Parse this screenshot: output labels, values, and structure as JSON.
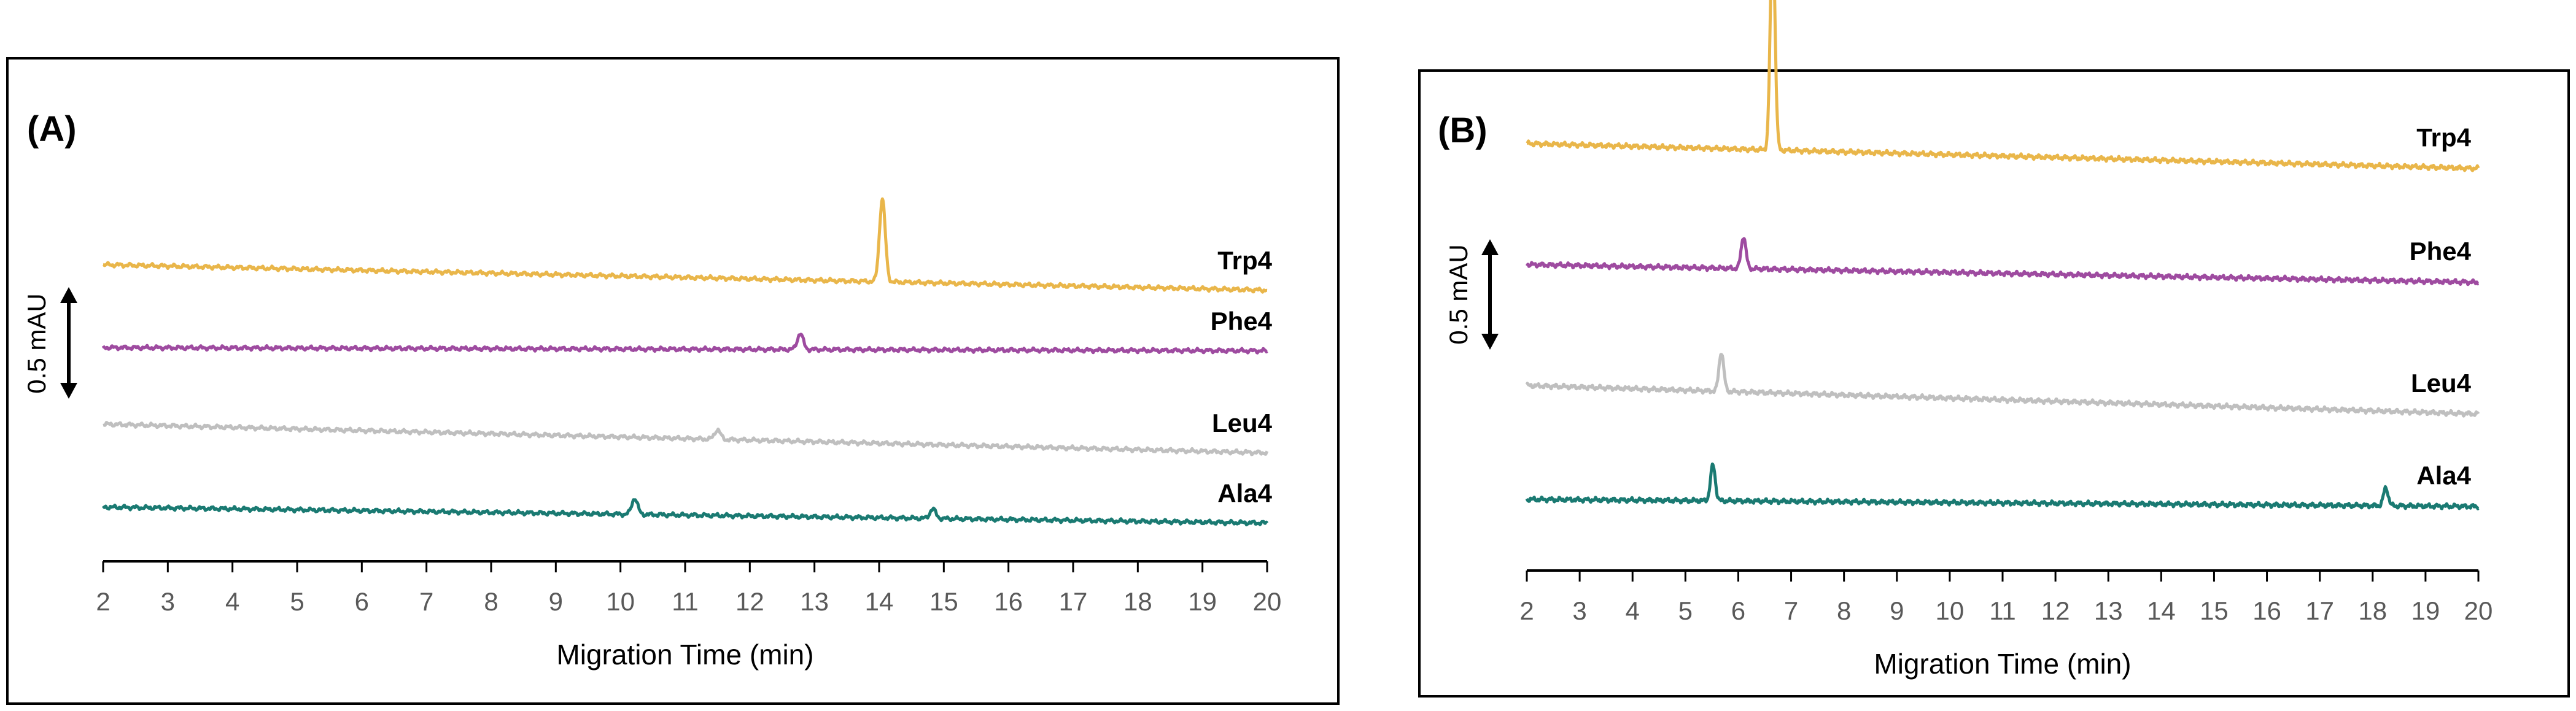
{
  "chart_data": [
    {
      "type": "line",
      "panel": "(A)",
      "xlabel": "Migration Time (min)",
      "xlim": [
        2,
        20
      ],
      "xticks": [
        2,
        3,
        4,
        5,
        6,
        7,
        8,
        9,
        10,
        11,
        12,
        13,
        14,
        15,
        16,
        17,
        18,
        19,
        20
      ],
      "scale_bar": {
        "label": "0.5 mAU",
        "value": 0.5
      },
      "series": [
        {
          "name": "Trp4",
          "color": "#E9B64A",
          "baseline": [
            [
              2,
              0.93
            ],
            [
              20,
              0.85
            ]
          ],
          "peaks": [
            {
              "x": 14.05,
              "height": 0.26
            }
          ]
        },
        {
          "name": "Phe4",
          "color": "#9E4BA0",
          "baseline": [
            [
              2,
              0.67
            ],
            [
              20,
              0.66
            ]
          ],
          "peaks": [
            {
              "x": 12.78,
              "height": 0.05
            }
          ]
        },
        {
          "name": "Leu4",
          "color": "#BFBFBF",
          "baseline": [
            [
              2,
              0.43
            ],
            [
              20,
              0.34
            ]
          ],
          "peaks": [
            {
              "x": 11.5,
              "height": 0.03
            }
          ]
        },
        {
          "name": "Ala4",
          "color": "#1A7A72",
          "baseline": [
            [
              2,
              0.17
            ],
            [
              20,
              0.12
            ]
          ],
          "peaks": [
            {
              "x": 10.22,
              "height": 0.05
            },
            {
              "x": 14.83,
              "height": 0.03
            }
          ]
        }
      ]
    },
    {
      "type": "line",
      "panel": "(B)",
      "xlabel": "Migration Time (min)",
      "xlim": [
        2,
        20
      ],
      "xticks": [
        2,
        3,
        4,
        5,
        6,
        7,
        8,
        9,
        10,
        11,
        12,
        13,
        14,
        15,
        16,
        17,
        18,
        19,
        20
      ],
      "scale_bar": {
        "label": "0.5 mAU",
        "value": 0.5
      },
      "series": [
        {
          "name": "Trp4",
          "color": "#E9B64A",
          "baseline": [
            [
              2,
              1.2
            ],
            [
              20,
              1.13
            ]
          ],
          "peaks": [
            {
              "x": 6.65,
              "height": 0.61
            }
          ]
        },
        {
          "name": "Phe4",
          "color": "#9E4BA0",
          "baseline": [
            [
              2,
              0.86
            ],
            [
              20,
              0.81
            ]
          ],
          "peaks": [
            {
              "x": 6.1,
              "height": 0.09
            }
          ]
        },
        {
          "name": "Leu4",
          "color": "#BFBFBF",
          "baseline": [
            [
              2,
              0.52
            ],
            [
              20,
              0.44
            ]
          ],
          "peaks": [
            {
              "x": 5.68,
              "height": 0.11
            }
          ]
        },
        {
          "name": "Ala4",
          "color": "#1A7A72",
          "baseline": [
            [
              2,
              0.2
            ],
            [
              20,
              0.18
            ]
          ],
          "peaks": [
            {
              "x": 5.52,
              "height": 0.1
            },
            {
              "x": 18.25,
              "height": 0.05
            }
          ]
        }
      ]
    }
  ]
}
